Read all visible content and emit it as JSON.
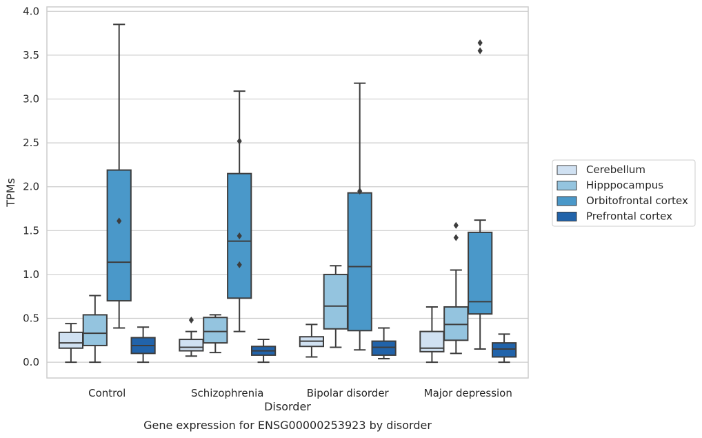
{
  "chart_data": {
    "type": "box",
    "caption": "Gene expression for ENSG00000253923 by disorder",
    "xlabel": "Disorder",
    "ylabel": "TPMs",
    "ylim": [
      -0.18,
      4.05
    ],
    "yticks": [
      "0.0",
      "0.5",
      "1.0",
      "1.5",
      "2.0",
      "2.5",
      "3.0",
      "3.5",
      "4.0"
    ],
    "grid": "horizontal",
    "legend_position": "right",
    "categories": [
      "Control",
      "Schizophrenia",
      "Bipolar disorder",
      "Major depression"
    ],
    "series": [
      {
        "name": "Cerebellum",
        "color": "#d0e1f2",
        "boxes": [
          {
            "whislo": 0.0,
            "q1": 0.16,
            "med": 0.22,
            "q3": 0.34,
            "whishi": 0.44,
            "fliers": []
          },
          {
            "whislo": 0.07,
            "q1": 0.13,
            "med": 0.17,
            "q3": 0.26,
            "whishi": 0.35,
            "fliers": [
              0.48
            ]
          },
          {
            "whislo": 0.06,
            "q1": 0.18,
            "med": 0.24,
            "q3": 0.29,
            "whishi": 0.43,
            "fliers": []
          },
          {
            "whislo": 0.0,
            "q1": 0.12,
            "med": 0.16,
            "q3": 0.35,
            "whishi": 0.63,
            "fliers": []
          }
        ]
      },
      {
        "name": "Hipppocampus",
        "color": "#94c4df",
        "boxes": [
          {
            "whislo": 0.0,
            "q1": 0.19,
            "med": 0.33,
            "q3": 0.54,
            "whishi": 0.76,
            "fliers": []
          },
          {
            "whislo": 0.11,
            "q1": 0.22,
            "med": 0.35,
            "q3": 0.51,
            "whishi": 0.54,
            "fliers": []
          },
          {
            "whislo": 0.17,
            "q1": 0.38,
            "med": 0.64,
            "q3": 1.0,
            "whishi": 1.1,
            "fliers": []
          },
          {
            "whislo": 0.1,
            "q1": 0.25,
            "med": 0.43,
            "q3": 0.63,
            "whishi": 1.05,
            "fliers": [
              1.42,
              1.56
            ]
          }
        ]
      },
      {
        "name": "Orbitofrontal cortex",
        "color": "#4a98c9",
        "boxes": [
          {
            "whislo": 0.39,
            "q1": 0.7,
            "med": 1.14,
            "q3": 2.19,
            "whishi": 3.85,
            "fliers": [
              1.61
            ]
          },
          {
            "whislo": 0.35,
            "q1": 0.73,
            "med": 1.38,
            "q3": 2.15,
            "whishi": 3.09,
            "fliers": [
              1.11,
              1.44,
              2.52
            ]
          },
          {
            "whislo": 0.14,
            "q1": 0.36,
            "med": 1.09,
            "q3": 1.93,
            "whishi": 3.18,
            "fliers": [
              1.95
            ]
          },
          {
            "whislo": 0.15,
            "q1": 0.55,
            "med": 0.69,
            "q3": 1.48,
            "whishi": 1.62,
            "fliers": [
              3.55,
              3.64
            ]
          }
        ]
      },
      {
        "name": "Prefrontal cortex",
        "color": "#2163aa",
        "boxes": [
          {
            "whislo": 0.0,
            "q1": 0.1,
            "med": 0.19,
            "q3": 0.28,
            "whishi": 0.4,
            "fliers": []
          },
          {
            "whislo": 0.0,
            "q1": 0.08,
            "med": 0.13,
            "q3": 0.18,
            "whishi": 0.26,
            "fliers": []
          },
          {
            "whislo": 0.04,
            "q1": 0.08,
            "med": 0.17,
            "q3": 0.24,
            "whishi": 0.39,
            "fliers": []
          },
          {
            "whislo": 0.0,
            "q1": 0.06,
            "med": 0.15,
            "q3": 0.22,
            "whishi": 0.32,
            "fliers": []
          }
        ]
      }
    ]
  }
}
